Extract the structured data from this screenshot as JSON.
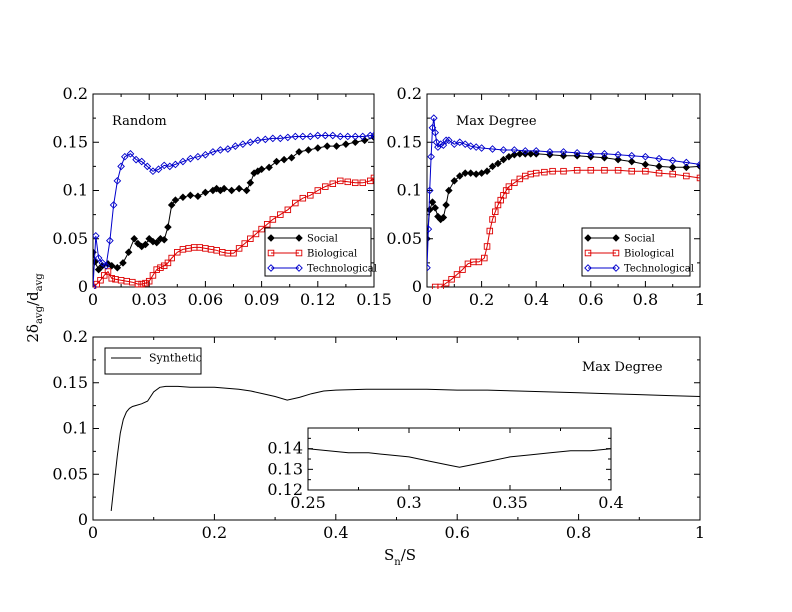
{
  "shared": {
    "ylabel_main": "2δ",
    "ylabel_sub1": "avg",
    "ylabel_mid": "/d",
    "ylabel_sub2": "avg",
    "xlabel_main": "S",
    "xlabel_sub": "n",
    "xlabel_tail": "/S"
  },
  "chart_data": [
    {
      "id": "random",
      "type": "line",
      "title": "Random",
      "xlim": [
        0,
        0.15
      ],
      "ylim": [
        0,
        0.2
      ],
      "xticks": [
        0,
        0.03,
        0.06,
        0.09,
        0.12,
        0.15
      ],
      "xtick_labels": [
        "0",
        "0.03",
        "0.06",
        "0.09",
        "0.12",
        "0.15"
      ],
      "yticks": [
        0,
        0.05,
        0.1,
        0.15,
        0.2
      ],
      "ytick_labels": [
        "0",
        "0.05",
        "0.1",
        "0.15",
        "0.2"
      ],
      "legend": [
        "Social",
        "Biological",
        "Technological"
      ],
      "series": [
        {
          "name": "Social",
          "color": "#000000",
          "marker": "diamond-filled",
          "x": [
            0.0,
            0.001,
            0.003,
            0.005,
            0.008,
            0.01,
            0.013,
            0.016,
            0.019,
            0.022,
            0.024,
            0.026,
            0.028,
            0.03,
            0.032,
            0.034,
            0.036,
            0.038,
            0.04,
            0.042,
            0.044,
            0.048,
            0.052,
            0.056,
            0.06,
            0.064,
            0.066,
            0.068,
            0.07,
            0.074,
            0.078,
            0.082,
            0.084,
            0.086,
            0.088,
            0.09,
            0.094,
            0.098,
            0.102,
            0.106,
            0.11,
            0.115,
            0.12,
            0.125,
            0.13,
            0.135,
            0.14,
            0.145,
            0.15
          ],
          "y": [
            0.036,
            0.026,
            0.018,
            0.022,
            0.024,
            0.022,
            0.02,
            0.025,
            0.036,
            0.05,
            0.045,
            0.042,
            0.044,
            0.05,
            0.047,
            0.046,
            0.05,
            0.049,
            0.062,
            0.085,
            0.09,
            0.093,
            0.095,
            0.094,
            0.098,
            0.1,
            0.102,
            0.1,
            0.102,
            0.1,
            0.102,
            0.1,
            0.108,
            0.118,
            0.12,
            0.122,
            0.124,
            0.13,
            0.132,
            0.134,
            0.14,
            0.142,
            0.144,
            0.146,
            0.146,
            0.148,
            0.15,
            0.152,
            0.155
          ]
        },
        {
          "name": "Biological",
          "color": "#dd0000",
          "marker": "square-open",
          "x": [
            0.0,
            0.002,
            0.004,
            0.006,
            0.008,
            0.01,
            0.012,
            0.015,
            0.018,
            0.021,
            0.024,
            0.026,
            0.028,
            0.03,
            0.032,
            0.034,
            0.036,
            0.038,
            0.04,
            0.042,
            0.045,
            0.048,
            0.051,
            0.054,
            0.057,
            0.06,
            0.063,
            0.066,
            0.069,
            0.072,
            0.075,
            0.078,
            0.081,
            0.084,
            0.087,
            0.09,
            0.093,
            0.096,
            0.1,
            0.104,
            0.108,
            0.112,
            0.116,
            0.12,
            0.124,
            0.128,
            0.132,
            0.136,
            0.14,
            0.144,
            0.148,
            0.15
          ],
          "y": [
            0.0,
            0.003,
            0.007,
            0.012,
            0.016,
            0.009,
            0.008,
            0.007,
            0.006,
            0.005,
            0.003,
            0.003,
            0.004,
            0.006,
            0.012,
            0.018,
            0.02,
            0.022,
            0.025,
            0.03,
            0.036,
            0.039,
            0.04,
            0.041,
            0.041,
            0.04,
            0.039,
            0.038,
            0.036,
            0.035,
            0.035,
            0.04,
            0.045,
            0.05,
            0.055,
            0.06,
            0.065,
            0.07,
            0.075,
            0.08,
            0.087,
            0.092,
            0.095,
            0.1,
            0.104,
            0.107,
            0.11,
            0.109,
            0.108,
            0.108,
            0.11,
            0.113
          ]
        },
        {
          "name": "Technological",
          "color": "#0000cc",
          "marker": "diamond-open",
          "x": [
            0.0,
            0.0015,
            0.003,
            0.005,
            0.007,
            0.009,
            0.011,
            0.013,
            0.015,
            0.017,
            0.02,
            0.023,
            0.026,
            0.029,
            0.032,
            0.035,
            0.038,
            0.041,
            0.044,
            0.048,
            0.052,
            0.056,
            0.06,
            0.064,
            0.068,
            0.072,
            0.076,
            0.08,
            0.084,
            0.088,
            0.092,
            0.096,
            0.1,
            0.104,
            0.108,
            0.112,
            0.116,
            0.12,
            0.124,
            0.128,
            0.132,
            0.136,
            0.14,
            0.144,
            0.148,
            0.15
          ],
          "y": [
            0.0,
            0.053,
            0.03,
            0.025,
            0.022,
            0.048,
            0.085,
            0.11,
            0.125,
            0.135,
            0.138,
            0.132,
            0.13,
            0.125,
            0.12,
            0.122,
            0.126,
            0.125,
            0.127,
            0.13,
            0.133,
            0.135,
            0.137,
            0.14,
            0.142,
            0.143,
            0.146,
            0.148,
            0.15,
            0.152,
            0.153,
            0.154,
            0.154,
            0.155,
            0.156,
            0.156,
            0.156,
            0.157,
            0.157,
            0.157,
            0.156,
            0.156,
            0.156,
            0.156,
            0.157,
            0.157
          ]
        }
      ]
    },
    {
      "id": "maxdegree",
      "type": "line",
      "title": "Max Degree",
      "xlim": [
        0,
        1
      ],
      "ylim": [
        0,
        0.2
      ],
      "xticks": [
        0,
        0.2,
        0.4,
        0.6,
        0.8,
        1
      ],
      "xtick_labels": [
        "0",
        "0.2",
        "0.4",
        "0.6",
        "0.8",
        "1"
      ],
      "yticks": [
        0,
        0.05,
        0.1,
        0.15,
        0.2
      ],
      "ytick_labels": [
        "0",
        "0.05",
        "0.1",
        "0.15",
        "0.2"
      ],
      "legend": [
        "Social",
        "Biological",
        "Technological"
      ],
      "series": [
        {
          "name": "Social",
          "color": "#000000",
          "marker": "diamond-filled",
          "x": [
            0.0,
            0.01,
            0.02,
            0.03,
            0.04,
            0.05,
            0.06,
            0.07,
            0.08,
            0.1,
            0.12,
            0.14,
            0.16,
            0.18,
            0.2,
            0.22,
            0.24,
            0.26,
            0.28,
            0.3,
            0.32,
            0.34,
            0.36,
            0.38,
            0.4,
            0.45,
            0.5,
            0.55,
            0.6,
            0.65,
            0.7,
            0.75,
            0.8,
            0.85,
            0.9,
            0.95,
            1.0
          ],
          "y": [
            0.05,
            0.08,
            0.088,
            0.082,
            0.073,
            0.07,
            0.072,
            0.085,
            0.1,
            0.11,
            0.115,
            0.118,
            0.118,
            0.117,
            0.118,
            0.12,
            0.125,
            0.128,
            0.132,
            0.135,
            0.137,
            0.138,
            0.138,
            0.138,
            0.138,
            0.137,
            0.136,
            0.136,
            0.135,
            0.134,
            0.132,
            0.13,
            0.127,
            0.125,
            0.124,
            0.124,
            0.125
          ]
        },
        {
          "name": "Biological",
          "color": "#dd0000",
          "marker": "square-open",
          "x": [
            0.03,
            0.05,
            0.07,
            0.09,
            0.11,
            0.13,
            0.15,
            0.17,
            0.19,
            0.21,
            0.22,
            0.23,
            0.24,
            0.25,
            0.26,
            0.27,
            0.28,
            0.29,
            0.3,
            0.32,
            0.34,
            0.36,
            0.38,
            0.4,
            0.43,
            0.46,
            0.5,
            0.55,
            0.6,
            0.65,
            0.7,
            0.75,
            0.8,
            0.85,
            0.9,
            0.95,
            1.0
          ],
          "y": [
            0.0,
            0.0,
            0.004,
            0.008,
            0.013,
            0.018,
            0.024,
            0.026,
            0.026,
            0.03,
            0.042,
            0.058,
            0.07,
            0.078,
            0.085,
            0.09,
            0.095,
            0.1,
            0.104,
            0.108,
            0.112,
            0.115,
            0.117,
            0.118,
            0.119,
            0.12,
            0.12,
            0.121,
            0.121,
            0.121,
            0.121,
            0.12,
            0.12,
            0.118,
            0.117,
            0.115,
            0.113
          ]
        },
        {
          "name": "Technological",
          "color": "#0000cc",
          "marker": "diamond-open",
          "x": [
            0.0,
            0.005,
            0.01,
            0.015,
            0.02,
            0.025,
            0.03,
            0.035,
            0.04,
            0.05,
            0.06,
            0.07,
            0.08,
            0.1,
            0.12,
            0.14,
            0.16,
            0.18,
            0.2,
            0.24,
            0.28,
            0.32,
            0.36,
            0.4,
            0.45,
            0.5,
            0.55,
            0.6,
            0.65,
            0.7,
            0.75,
            0.8,
            0.85,
            0.9,
            0.95,
            1.0
          ],
          "y": [
            0.02,
            0.06,
            0.1,
            0.135,
            0.165,
            0.175,
            0.16,
            0.15,
            0.145,
            0.148,
            0.147,
            0.152,
            0.152,
            0.148,
            0.15,
            0.148,
            0.146,
            0.145,
            0.144,
            0.143,
            0.142,
            0.142,
            0.141,
            0.141,
            0.14,
            0.14,
            0.139,
            0.138,
            0.138,
            0.137,
            0.136,
            0.135,
            0.133,
            0.131,
            0.129,
            0.127
          ]
        }
      ]
    },
    {
      "id": "synthetic",
      "type": "line",
      "title": "Max Degree",
      "xlim": [
        0,
        1
      ],
      "ylim": [
        0,
        0.2
      ],
      "xticks": [
        0,
        0.2,
        0.4,
        0.6,
        0.8,
        1
      ],
      "xtick_labels": [
        "0",
        "0.2",
        "0.4",
        "0.6",
        "0.8",
        "1"
      ],
      "yticks": [
        0,
        0.05,
        0.1,
        0.15,
        0.2
      ],
      "ytick_labels": [
        "0",
        "0.05",
        "0.1",
        "0.15",
        "0.2"
      ],
      "legend": [
        "Synthetic"
      ],
      "series": [
        {
          "name": "Synthetic",
          "color": "#000000",
          "marker": "none",
          "x": [
            0.03,
            0.035,
            0.04,
            0.045,
            0.05,
            0.055,
            0.06,
            0.065,
            0.07,
            0.08,
            0.09,
            0.1,
            0.11,
            0.12,
            0.14,
            0.16,
            0.18,
            0.2,
            0.22,
            0.24,
            0.26,
            0.28,
            0.3,
            0.32,
            0.34,
            0.36,
            0.38,
            0.4,
            0.45,
            0.5,
            0.55,
            0.6,
            0.65,
            0.7,
            0.75,
            0.8,
            0.85,
            0.9,
            0.95,
            1.0
          ],
          "y": [
            0.01,
            0.04,
            0.07,
            0.095,
            0.11,
            0.118,
            0.122,
            0.124,
            0.125,
            0.127,
            0.13,
            0.14,
            0.145,
            0.146,
            0.146,
            0.145,
            0.145,
            0.145,
            0.144,
            0.143,
            0.141,
            0.138,
            0.135,
            0.131,
            0.134,
            0.138,
            0.141,
            0.142,
            0.143,
            0.143,
            0.143,
            0.142,
            0.142,
            0.141,
            0.14,
            0.139,
            0.138,
            0.137,
            0.136,
            0.135
          ]
        }
      ]
    },
    {
      "id": "inset",
      "type": "line",
      "title": "",
      "xlim": [
        0.25,
        0.4
      ],
      "ylim": [
        0.12,
        0.15
      ],
      "xticks": [
        0.25,
        0.3,
        0.35,
        0.4
      ],
      "xtick_labels": [
        "0.25",
        "0.3",
        "0.35",
        "0.4"
      ],
      "yticks": [
        0.12,
        0.13,
        0.14
      ],
      "ytick_labels": [
        "0.12",
        "0.13",
        "0.14"
      ],
      "legend": [],
      "series": [
        {
          "name": "Synthetic",
          "color": "#000000",
          "marker": "none",
          "x": [
            0.25,
            0.26,
            0.27,
            0.28,
            0.29,
            0.3,
            0.31,
            0.32,
            0.325,
            0.33,
            0.34,
            0.35,
            0.36,
            0.37,
            0.38,
            0.39,
            0.4
          ],
          "y": [
            0.14,
            0.139,
            0.138,
            0.138,
            0.137,
            0.136,
            0.134,
            0.132,
            0.131,
            0.132,
            0.134,
            0.136,
            0.137,
            0.138,
            0.139,
            0.139,
            0.14
          ]
        }
      ]
    }
  ]
}
